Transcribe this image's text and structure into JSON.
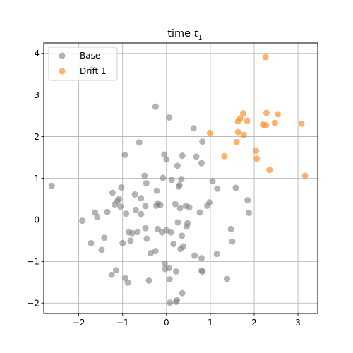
{
  "chart_data": {
    "type": "scatter",
    "title_main": "time ",
    "title_var": "t",
    "title_sub": "1",
    "xlabel": "",
    "ylabel": "",
    "xlim": [
      -2.8,
      3.45
    ],
    "ylim": [
      -2.25,
      4.25
    ],
    "xticks": [
      -2,
      -1,
      0,
      1,
      2,
      3
    ],
    "yticks": [
      -2,
      -1,
      0,
      1,
      2,
      3,
      4
    ],
    "xtick_labels": [
      "−2",
      "−1",
      "0",
      "1",
      "2",
      "3"
    ],
    "ytick_labels": [
      "−2",
      "−1",
      "0",
      "1",
      "2",
      "3",
      "4"
    ],
    "grid": true,
    "legend_position": "top-left",
    "series": [
      {
        "name": "Base",
        "color": "#808080",
        "points": [
          [
            -2.62,
            0.82
          ],
          [
            -1.92,
            -0.02
          ],
          [
            -1.72,
            -0.56
          ],
          [
            -1.63,
            0.18
          ],
          [
            -1.58,
            0.07
          ],
          [
            -1.48,
            -0.72
          ],
          [
            -1.42,
            -0.43
          ],
          [
            -1.35,
            0.19
          ],
          [
            -1.25,
            -1.32
          ],
          [
            -1.23,
            0.65
          ],
          [
            -1.18,
            0.37
          ],
          [
            -1.15,
            -1.21
          ],
          [
            -1.12,
            0.45
          ],
          [
            -1.08,
            0.5
          ],
          [
            -1.05,
            0.32
          ],
          [
            -1.03,
            0.78
          ],
          [
            -1.0,
            -0.56
          ],
          [
            -0.95,
            1.56
          ],
          [
            -0.94,
            -1.4
          ],
          [
            -0.92,
            0.15
          ],
          [
            -0.88,
            -1.51
          ],
          [
            -0.86,
            -0.3
          ],
          [
            -0.82,
            -0.5
          ],
          [
            -0.78,
            -0.32
          ],
          [
            -0.72,
            0.61
          ],
          [
            -0.7,
            0.24
          ],
          [
            -0.66,
            -0.29
          ],
          [
            -0.62,
            1.86
          ],
          [
            -0.58,
            0.52
          ],
          [
            -0.58,
            0.14
          ],
          [
            -0.5,
            1.06
          ],
          [
            -0.48,
            0.33
          ],
          [
            -0.48,
            -0.2
          ],
          [
            -0.46,
            0.88
          ],
          [
            -0.45,
            -0.45
          ],
          [
            -0.4,
            -1.46
          ],
          [
            -0.36,
            -0.8
          ],
          [
            -0.25,
            2.72
          ],
          [
            -0.25,
            -0.75
          ],
          [
            -0.23,
            0.34
          ],
          [
            -0.22,
            0.7
          ],
          [
            -0.2,
            -0.22
          ],
          [
            -0.2,
            0.4
          ],
          [
            -0.14,
            0.36
          ],
          [
            -0.1,
            -0.3
          ],
          [
            -0.08,
            1.01
          ],
          [
            -0.05,
            1.57
          ],
          [
            -0.04,
            -1.05
          ],
          [
            -0.03,
            -1.18
          ],
          [
            0.0,
            1.45
          ],
          [
            0.0,
            -0.25
          ],
          [
            0.06,
            2.46
          ],
          [
            0.06,
            -1.16
          ],
          [
            0.07,
            -1.43
          ],
          [
            0.08,
            -1.99
          ],
          [
            0.1,
            -0.3
          ],
          [
            0.12,
            0.96
          ],
          [
            0.16,
            -0.58
          ],
          [
            0.2,
            0.38
          ],
          [
            0.22,
            -1.97
          ],
          [
            0.22,
            -1.24
          ],
          [
            0.24,
            -1.93
          ],
          [
            0.25,
            1.3
          ],
          [
            0.26,
            -0.06
          ],
          [
            0.28,
            0.8
          ],
          [
            0.3,
            0.84
          ],
          [
            0.31,
            0.28
          ],
          [
            0.32,
            -0.7
          ],
          [
            0.34,
            0.98
          ],
          [
            0.35,
            -0.38
          ],
          [
            0.36,
            1.54
          ],
          [
            0.36,
            -1.76
          ],
          [
            0.38,
            -0.64
          ],
          [
            0.44,
            0.34
          ],
          [
            0.46,
            -0.16
          ],
          [
            0.48,
            -0.08
          ],
          [
            0.52,
            0.3
          ],
          [
            0.62,
            2.2
          ],
          [
            0.64,
            -0.86
          ],
          [
            0.68,
            1.52
          ],
          [
            0.76,
            0.18
          ],
          [
            0.8,
            1.36
          ],
          [
            0.8,
            -0.92
          ],
          [
            0.8,
            -1.22
          ],
          [
            0.82,
            -1.24
          ],
          [
            0.82,
            1.88
          ],
          [
            0.93,
            0.34
          ],
          [
            0.98,
            0.42
          ],
          [
            1.05,
            0.93
          ],
          [
            1.15,
            -0.82
          ],
          [
            1.16,
            0.75
          ],
          [
            1.38,
            -1.42
          ],
          [
            1.47,
            -0.22
          ],
          [
            1.5,
            -0.52
          ],
          [
            1.58,
            0.77
          ],
          [
            1.85,
            0.47
          ],
          [
            1.88,
            0.17
          ]
        ]
      },
      {
        "name": "Drift 1",
        "color": "#ff7f0e",
        "points": [
          [
            0.99,
            2.09
          ],
          [
            1.32,
            1.53
          ],
          [
            1.6,
            1.87
          ],
          [
            1.63,
            2.37
          ],
          [
            1.63,
            2.11
          ],
          [
            1.68,
            2.44
          ],
          [
            1.75,
            2.56
          ],
          [
            1.76,
            2.04
          ],
          [
            1.84,
            2.38
          ],
          [
            2.04,
            1.66
          ],
          [
            2.06,
            1.47
          ],
          [
            2.2,
            2.29
          ],
          [
            2.26,
            3.91
          ],
          [
            2.27,
            2.27
          ],
          [
            2.28,
            2.57
          ],
          [
            2.35,
            1.2
          ],
          [
            2.47,
            2.33
          ],
          [
            2.54,
            2.54
          ],
          [
            3.08,
            2.31
          ],
          [
            3.16,
            1.06
          ]
        ]
      }
    ]
  }
}
